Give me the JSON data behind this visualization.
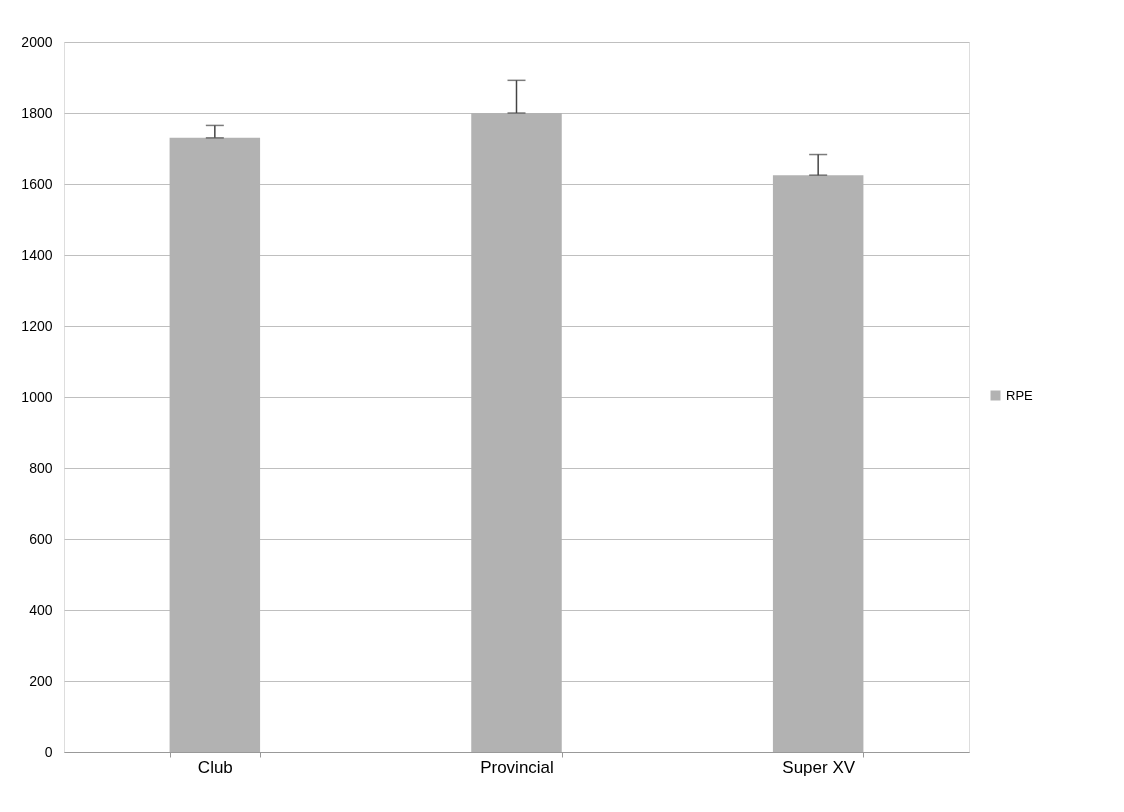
{
  "chart_data": {
    "type": "bar",
    "categories": [
      "Club",
      "Provincial",
      "Super XV"
    ],
    "series": [
      {
        "name": "RPE",
        "color": "#b2b2b2",
        "values": [
          1730,
          1800,
          1625
        ],
        "errors": [
          [
            1730,
            1765
          ],
          [
            1800,
            1892
          ],
          [
            1625,
            1683
          ]
        ]
      }
    ],
    "ylim": [
      0,
      2000
    ],
    "yticks": [
      0,
      200,
      400,
      600,
      800,
      1000,
      1200,
      1400,
      1600,
      1800,
      2000
    ],
    "grid": "y",
    "legend": "right"
  }
}
